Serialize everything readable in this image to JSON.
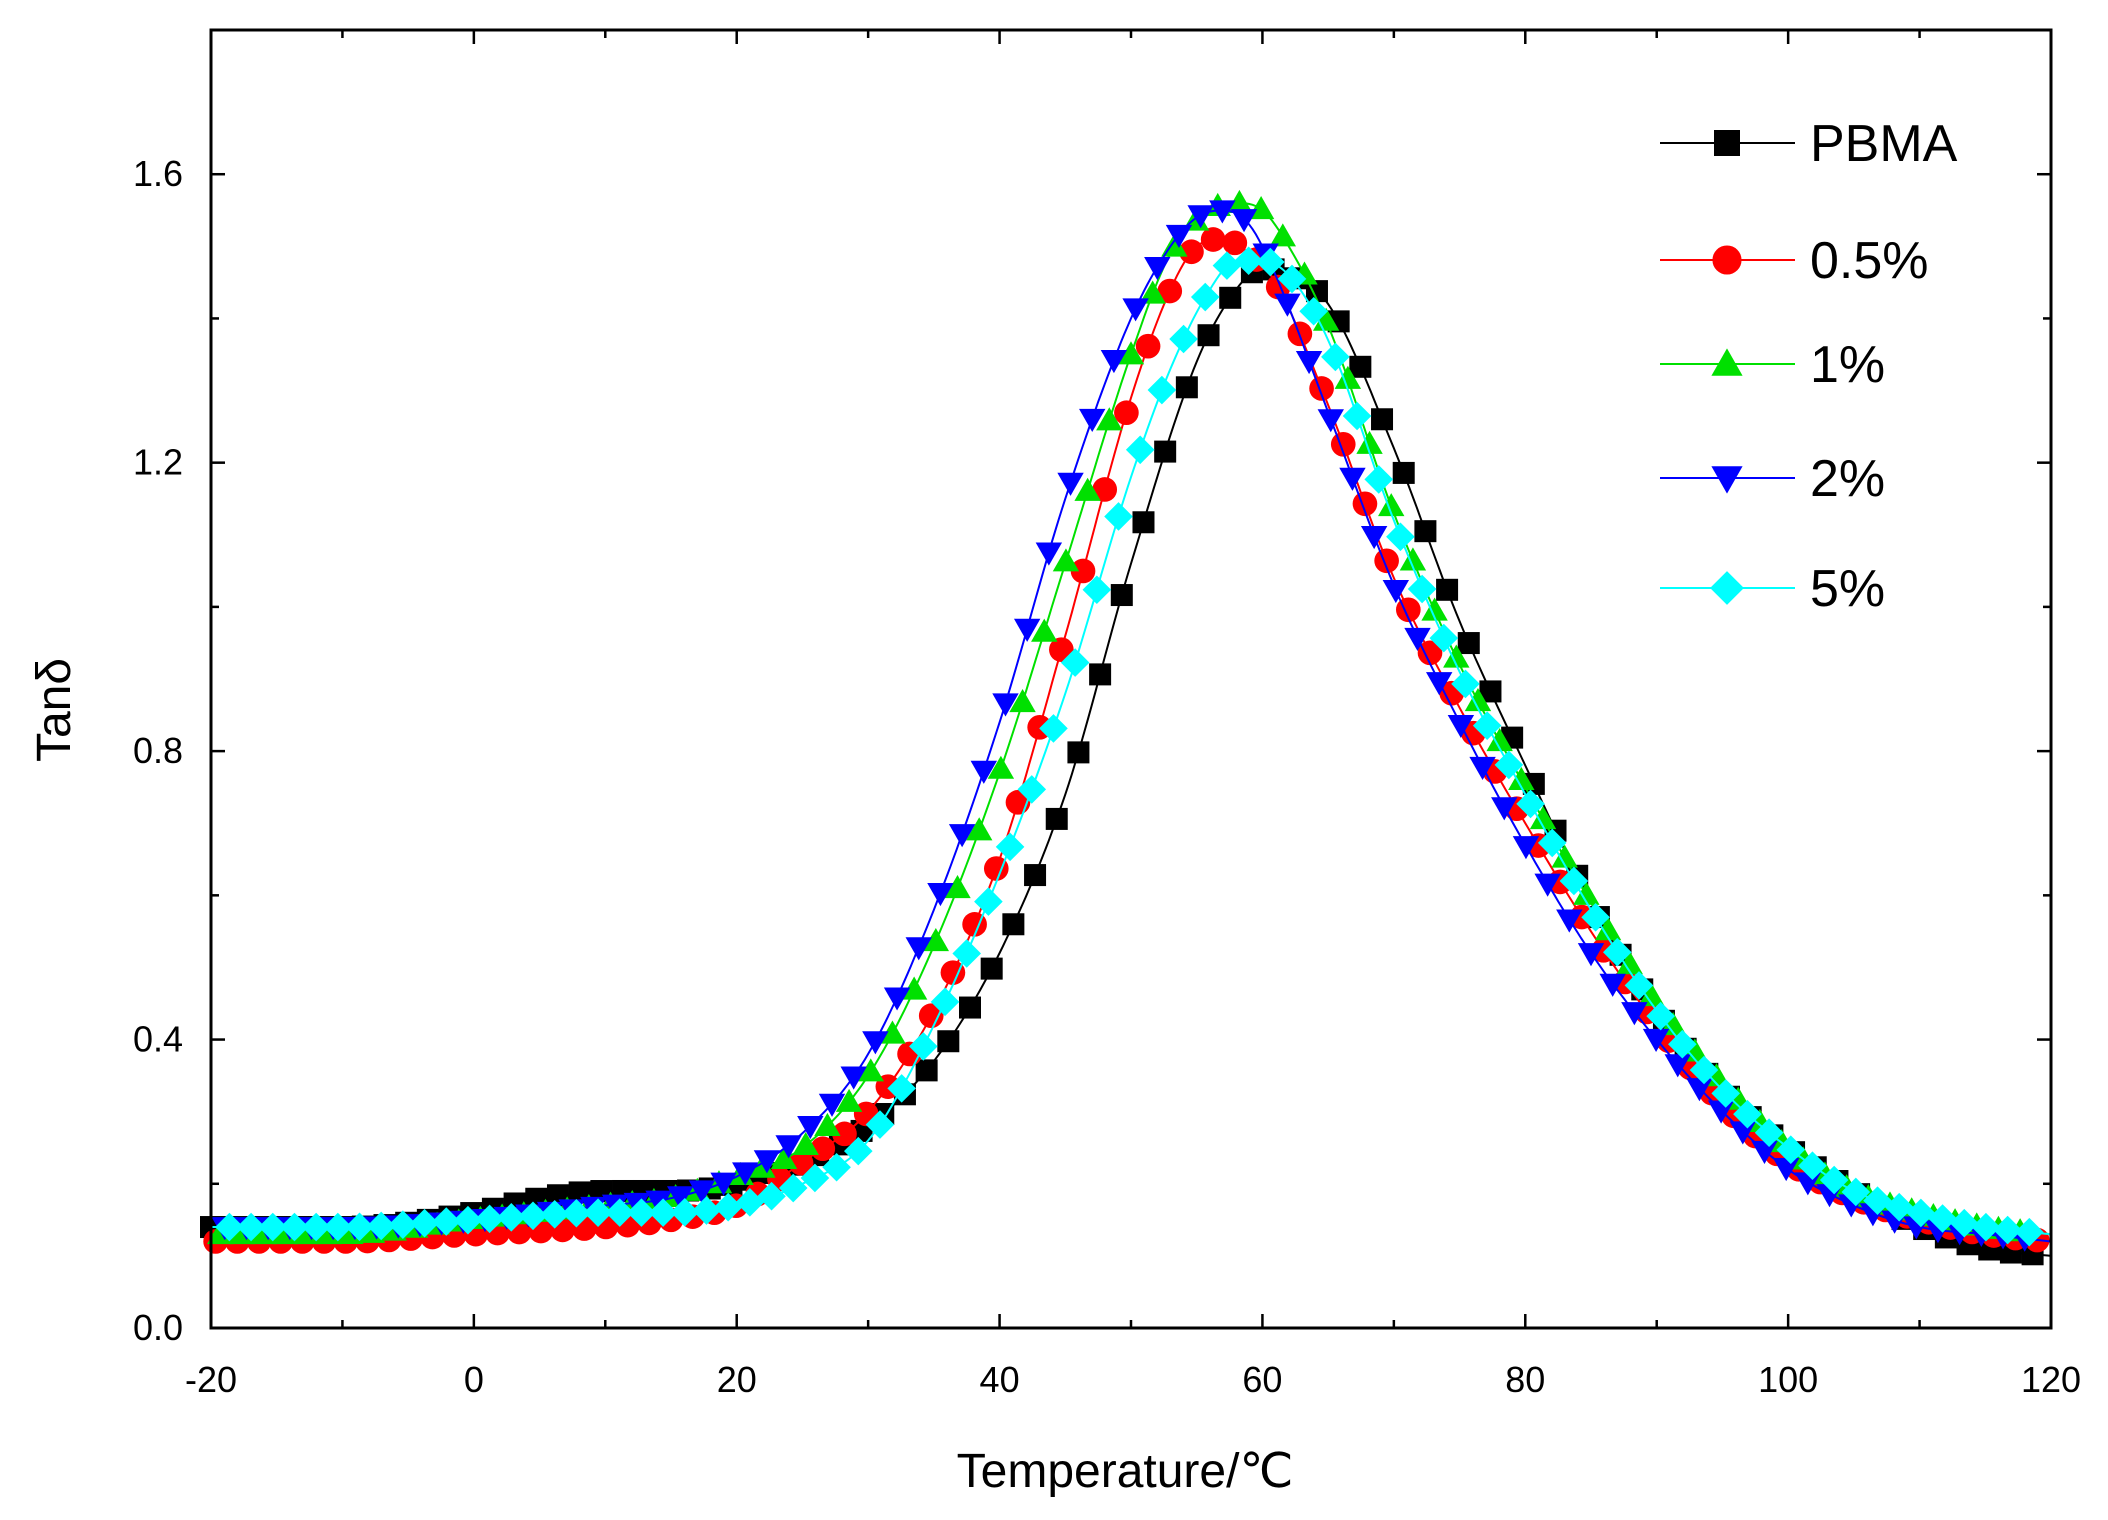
{
  "chart_data": {
    "type": "line",
    "title": "",
    "xlabel": "Temperature/℃",
    "ylabel": "Tanδ",
    "xlim": [
      -20,
      120
    ],
    "ylim": [
      0.0,
      1.8
    ],
    "xticks": [
      -20,
      0,
      20,
      40,
      60,
      80,
      100,
      120
    ],
    "xtick_labels": [
      "-20",
      "0",
      "20",
      "40",
      "60",
      "80",
      "100",
      "120"
    ],
    "yticks": [
      0.0,
      0.4,
      0.8,
      1.2,
      1.6
    ],
    "ytick_labels": [
      "0.0",
      "0.4",
      "0.8",
      "1.2",
      "1.6"
    ],
    "grid": false,
    "legend_position": "top-right",
    "series": [
      {
        "name": "PBMA",
        "color": "#000000",
        "marker": "square",
        "x": [
          -20,
          -10,
          0,
          5,
          10,
          15,
          20,
          25,
          30,
          35,
          40,
          45,
          50,
          55,
          58,
          60,
          62,
          65,
          70,
          75,
          80,
          85,
          90,
          95,
          100,
          105,
          110,
          115,
          120
        ],
        "values": [
          0.14,
          0.14,
          0.16,
          0.18,
          0.19,
          0.19,
          0.2,
          0.23,
          0.28,
          0.37,
          0.52,
          0.74,
          1.06,
          1.34,
          1.44,
          1.47,
          1.46,
          1.42,
          1.22,
          0.98,
          0.78,
          0.59,
          0.44,
          0.33,
          0.25,
          0.19,
          0.14,
          0.11,
          0.1
        ]
      },
      {
        "name": "0.5%",
        "color": "#ff0000",
        "marker": "circle",
        "x": [
          -20,
          -10,
          0,
          10,
          15,
          20,
          25,
          30,
          35,
          40,
          45,
          50,
          53,
          55,
          57,
          59,
          61,
          65,
          70,
          75,
          80,
          85,
          90,
          95,
          100,
          105,
          110,
          115,
          120
        ],
        "values": [
          0.12,
          0.12,
          0.13,
          0.14,
          0.15,
          0.17,
          0.23,
          0.3,
          0.44,
          0.65,
          0.96,
          1.29,
          1.44,
          1.5,
          1.51,
          1.49,
          1.45,
          1.28,
          1.04,
          0.86,
          0.7,
          0.55,
          0.42,
          0.31,
          0.23,
          0.18,
          0.15,
          0.13,
          0.12
        ]
      },
      {
        "name": "1%",
        "color": "#00e000",
        "marker": "triangle-up",
        "x": [
          -20,
          -10,
          0,
          10,
          15,
          20,
          25,
          30,
          35,
          40,
          45,
          50,
          53,
          56,
          58,
          60,
          62,
          65,
          70,
          75,
          80,
          85,
          90,
          95,
          100,
          105,
          110,
          115,
          120
        ],
        "values": [
          0.13,
          0.13,
          0.15,
          0.17,
          0.18,
          0.21,
          0.25,
          0.35,
          0.53,
          0.77,
          1.06,
          1.35,
          1.49,
          1.55,
          1.56,
          1.55,
          1.5,
          1.39,
          1.13,
          0.92,
          0.75,
          0.59,
          0.45,
          0.34,
          0.25,
          0.19,
          0.16,
          0.14,
          0.13
        ]
      },
      {
        "name": "2%",
        "color": "#0000ff",
        "marker": "triangle-down",
        "x": [
          -20,
          -10,
          0,
          10,
          15,
          20,
          25,
          30,
          35,
          40,
          45,
          50,
          53,
          55,
          57,
          59,
          61,
          65,
          70,
          75,
          80,
          85,
          90,
          95,
          100,
          105,
          110,
          115,
          120
        ],
        "values": [
          0.14,
          0.14,
          0.15,
          0.17,
          0.18,
          0.21,
          0.27,
          0.38,
          0.58,
          0.84,
          1.15,
          1.4,
          1.5,
          1.54,
          1.55,
          1.53,
          1.46,
          1.27,
          1.03,
          0.84,
          0.67,
          0.52,
          0.4,
          0.3,
          0.22,
          0.17,
          0.14,
          0.13,
          0.12
        ]
      },
      {
        "name": "5%",
        "color": "#00ffff",
        "marker": "diamond",
        "x": [
          -20,
          -10,
          0,
          10,
          15,
          20,
          25,
          30,
          35,
          40,
          45,
          50,
          53,
          56,
          58,
          60,
          62,
          65,
          70,
          75,
          80,
          85,
          90,
          95,
          100,
          105,
          110,
          115,
          120
        ],
        "values": [
          0.14,
          0.14,
          0.15,
          0.16,
          0.16,
          0.17,
          0.2,
          0.26,
          0.42,
          0.63,
          0.88,
          1.18,
          1.33,
          1.44,
          1.48,
          1.48,
          1.46,
          1.37,
          1.12,
          0.91,
          0.74,
          0.58,
          0.44,
          0.33,
          0.25,
          0.19,
          0.16,
          0.14,
          0.13
        ]
      }
    ]
  }
}
